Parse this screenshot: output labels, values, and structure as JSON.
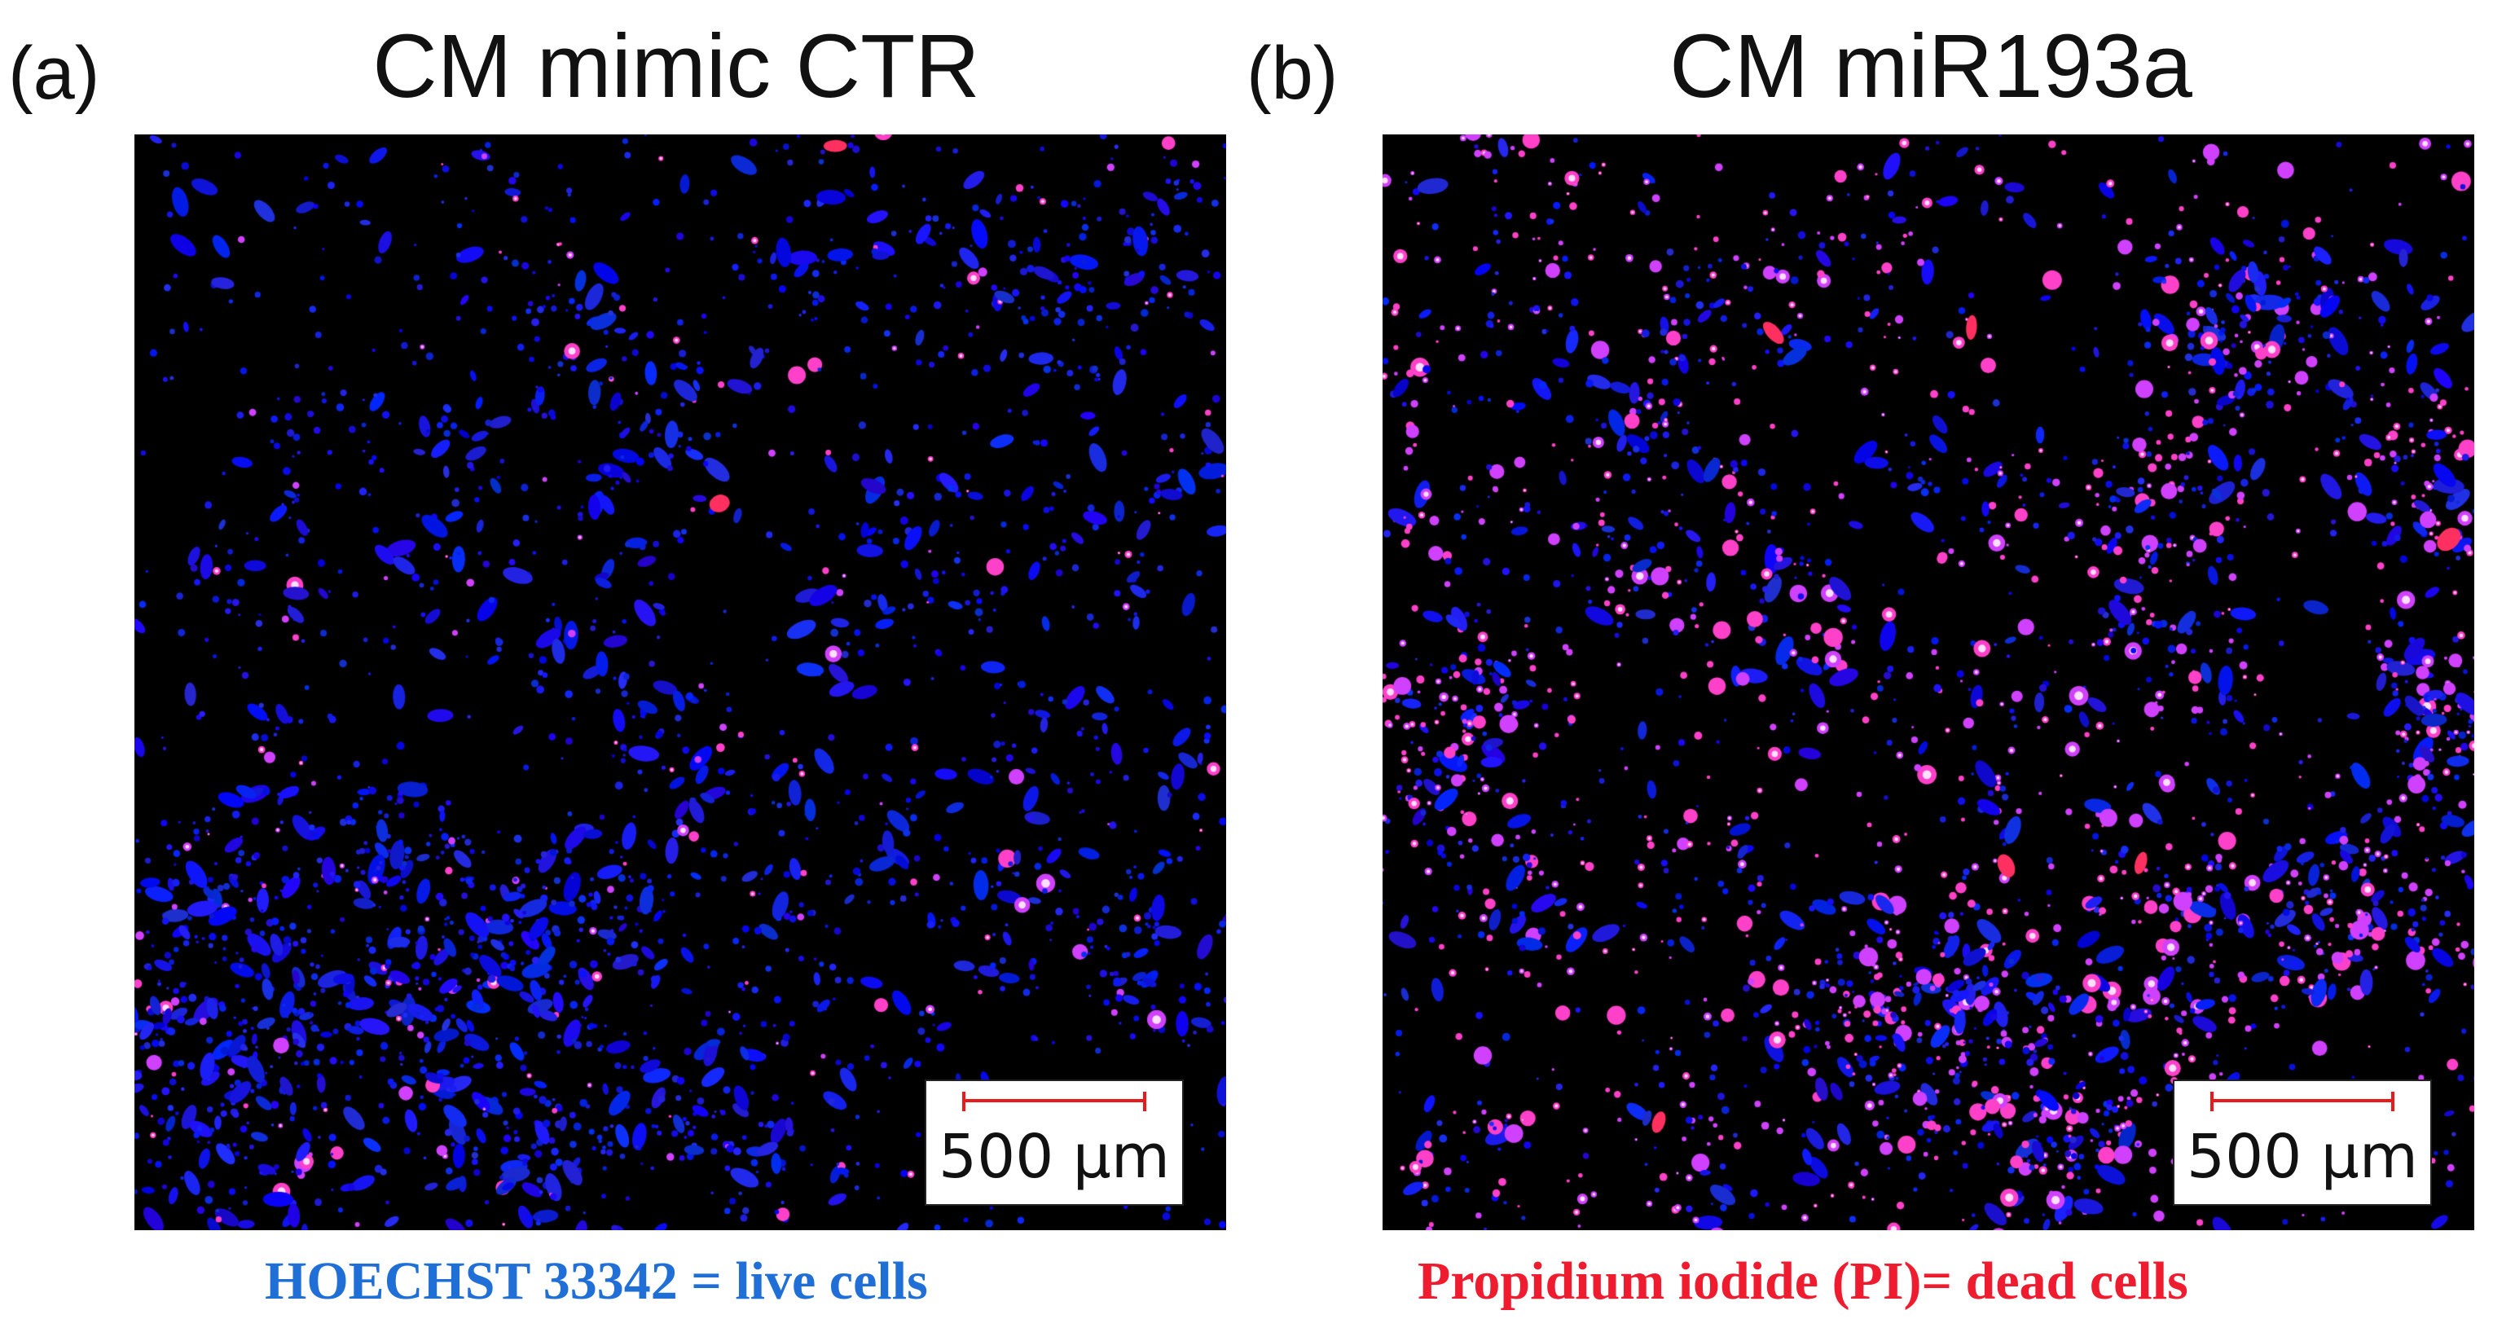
{
  "panels": [
    {
      "letter": "(a)",
      "title": "CM mimic CTR",
      "scale_label": "500 µm",
      "caption": "HOECHST 33342 = live cells",
      "caption_color": "#1f6fd6",
      "pink_fraction": 0.08
    },
    {
      "letter": "(b)",
      "title": "CM miR193a",
      "scale_label": "500 µm",
      "caption": "Propidium iodide (PI)= dead cells",
      "caption_color": "#ee1c2e",
      "pink_fraction": 0.45
    }
  ],
  "colors": {
    "background": "#000000",
    "live_stain": "#1a1aff",
    "dead_stain": "#ff3060",
    "overlap": "#d040ff",
    "scale_bar": "#e81a1a"
  }
}
